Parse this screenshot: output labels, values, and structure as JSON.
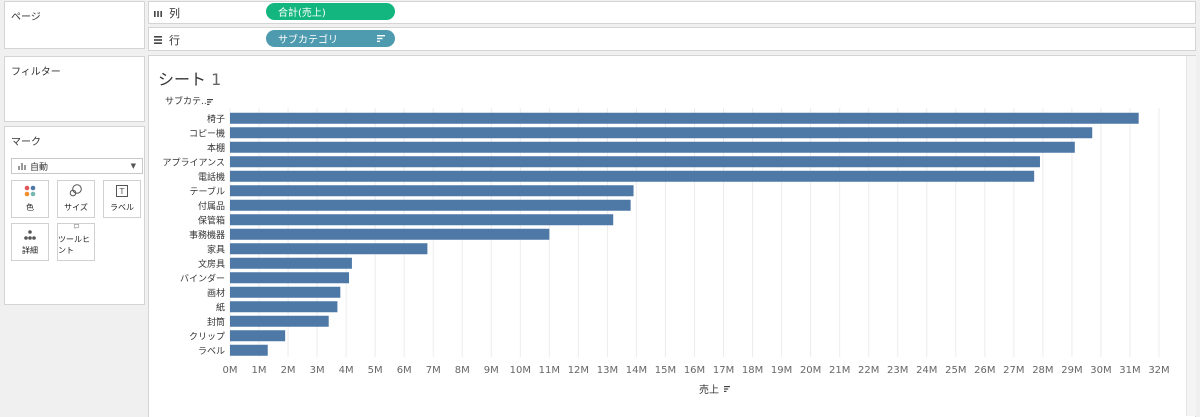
{
  "left_panel": {
    "pages_title": "ページ",
    "filters_title": "フィルター",
    "marks_title": "マーク",
    "marks_type": "自動",
    "marks_buttons": [
      {
        "label": "色",
        "icon": "color-icon"
      },
      {
        "label": "サイズ",
        "icon": "size-icon"
      },
      {
        "label": "ラベル",
        "icon": "label-icon"
      },
      {
        "label": "詳細",
        "icon": "detail-icon"
      },
      {
        "label": "ツールヒント",
        "icon": "tooltip-icon"
      }
    ]
  },
  "shelves": {
    "columns_label": "列",
    "rows_label": "行",
    "columns_pill": "合計(売上)",
    "rows_pill": "サブカテゴリ"
  },
  "colors": {
    "bar": "#4e79a7",
    "columns_pill": "#13b67e",
    "rows_pill": "#4e9aaf"
  },
  "sheet": {
    "title": "シート",
    "title_num": "1"
  },
  "chart_data": {
    "type": "bar",
    "orientation": "horizontal",
    "row_header": "サブカテ..",
    "xlabel": "売上",
    "categories": [
      "椅子",
      "コピー機",
      "本棚",
      "アプライアンス",
      "電話機",
      "テーブル",
      "付属品",
      "保管箱",
      "事務機器",
      "家具",
      "文房具",
      "バインダー",
      "画材",
      "紙",
      "封筒",
      "クリップ",
      "ラベル"
    ],
    "values": [
      31.3,
      29.7,
      29.1,
      27.9,
      27.7,
      13.9,
      13.8,
      13.2,
      11.0,
      6.8,
      4.2,
      4.1,
      3.8,
      3.7,
      3.4,
      1.9,
      1.3
    ],
    "unit": "M",
    "xlim": [
      0,
      32
    ],
    "xticks": [
      "0M",
      "1M",
      "2M",
      "3M",
      "4M",
      "5M",
      "6M",
      "7M",
      "8M",
      "9M",
      "10M",
      "11M",
      "12M",
      "13M",
      "14M",
      "15M",
      "16M",
      "17M",
      "18M",
      "19M",
      "20M",
      "21M",
      "22M",
      "23M",
      "24M",
      "25M",
      "26M",
      "27M",
      "28M",
      "29M",
      "30M",
      "31M",
      "32M"
    ],
    "grid": true
  }
}
